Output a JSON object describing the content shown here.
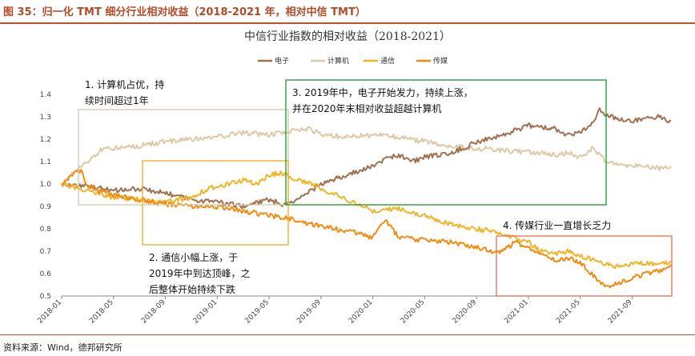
{
  "header": {
    "figure_title": "图 35：归一化 TMT 细分行业相对收益（2018-2021 年，相对中信 TMT）"
  },
  "footer": {
    "source": "资料来源：Wind，德邦研究所"
  },
  "chart_data": {
    "type": "line",
    "title": "中信行业指数的相对收益（2018-2021）",
    "ylim": [
      0.5,
      1.4
    ],
    "y_ticks": [
      "0.5",
      "0.6",
      "0.7",
      "0.8",
      "0.9",
      "1.0",
      "1.1",
      "1.2",
      "1.3",
      "1.4"
    ],
    "x_ticks": [
      "2018-01",
      "2018-05",
      "2018-09",
      "2019-01",
      "2019-05",
      "2019-09",
      "2020-01",
      "2020-05",
      "2020-09",
      "2021-01",
      "2021-05",
      "2021-09"
    ],
    "x_range_months": [
      0,
      47
    ],
    "series": [
      {
        "name": "电子",
        "color": "#a07050",
        "months": [
          0,
          2,
          4,
          6,
          8,
          10,
          12,
          14,
          16,
          17,
          18,
          19,
          20,
          21,
          22,
          24,
          25,
          26,
          27,
          28,
          29,
          30,
          31,
          32,
          33,
          34,
          35,
          36,
          37,
          38,
          39,
          40,
          41,
          41.5,
          42,
          43,
          44,
          45,
          46,
          47
        ],
        "values": [
          1.0,
          0.99,
          0.97,
          0.98,
          0.96,
          0.93,
          0.92,
          0.9,
          0.93,
          0.91,
          0.92,
          0.96,
          1.0,
          1.02,
          1.04,
          1.08,
          1.11,
          1.13,
          1.1,
          1.12,
          1.13,
          1.14,
          1.16,
          1.19,
          1.2,
          1.22,
          1.24,
          1.26,
          1.25,
          1.25,
          1.22,
          1.23,
          1.28,
          1.33,
          1.31,
          1.29,
          1.28,
          1.29,
          1.3,
          1.28
        ]
      },
      {
        "name": "计算机",
        "color": "#ddc9a6",
        "months": [
          0,
          1,
          2,
          3,
          4,
          6,
          8,
          10,
          12,
          14,
          16,
          18,
          19,
          20,
          22,
          24,
          26,
          28,
          30,
          32,
          34,
          36,
          38,
          39,
          40,
          41,
          42,
          43,
          44,
          45,
          46,
          47
        ],
        "values": [
          1.0,
          1.06,
          1.1,
          1.15,
          1.16,
          1.17,
          1.19,
          1.2,
          1.21,
          1.23,
          1.22,
          1.24,
          1.25,
          1.22,
          1.21,
          1.22,
          1.21,
          1.19,
          1.17,
          1.16,
          1.15,
          1.14,
          1.13,
          1.14,
          1.12,
          1.16,
          1.1,
          1.09,
          1.08,
          1.08,
          1.07,
          1.08
        ]
      },
      {
        "name": "通信",
        "color": "#f0b429",
        "months": [
          0,
          2,
          4,
          6,
          8,
          10,
          11,
          12,
          13,
          14,
          15,
          16,
          17,
          18,
          19,
          20,
          22,
          24,
          26,
          28,
          30,
          32,
          34,
          35,
          36,
          37,
          38,
          39,
          40,
          41,
          42,
          43,
          44,
          45,
          46,
          47
        ],
        "values": [
          1.0,
          0.97,
          0.94,
          0.93,
          0.92,
          0.94,
          0.97,
          0.99,
          1.0,
          1.02,
          1.0,
          1.04,
          1.05,
          1.02,
          1.01,
          0.98,
          0.93,
          0.88,
          0.89,
          0.86,
          0.82,
          0.8,
          0.78,
          0.76,
          0.74,
          0.7,
          0.69,
          0.7,
          0.68,
          0.66,
          0.64,
          0.63,
          0.64,
          0.65,
          0.64,
          0.65
        ]
      },
      {
        "name": "传媒",
        "color": "#f08c14",
        "months": [
          0,
          1,
          1.5,
          2,
          3,
          4,
          6,
          8,
          10,
          12,
          14,
          16,
          18,
          20,
          21,
          22,
          23,
          24,
          25,
          26,
          28,
          30,
          32,
          33,
          34,
          35,
          36,
          37,
          38,
          39,
          40,
          41,
          42,
          43,
          44,
          45,
          46,
          47
        ],
        "values": [
          1.0,
          1.05,
          1.06,
          0.99,
          0.97,
          0.95,
          0.93,
          0.91,
          0.9,
          0.9,
          0.88,
          0.86,
          0.84,
          0.81,
          0.8,
          0.79,
          0.78,
          0.76,
          0.84,
          0.76,
          0.75,
          0.74,
          0.72,
          0.7,
          0.7,
          0.74,
          0.71,
          0.68,
          0.66,
          0.67,
          0.65,
          0.59,
          0.54,
          0.56,
          0.58,
          0.6,
          0.61,
          0.64
        ]
      }
    ],
    "annotations": [
      {
        "color": "#d8ceb5",
        "lines": [
          "1. 计算机占优，持",
          "续时间超过1年"
        ]
      },
      {
        "color": "#f0b429",
        "lines": [
          "2. 通信小幅上涨，于",
          "2019年中到达顶峰，之",
          "后整体开始持续下跌"
        ]
      },
      {
        "color": "#2e9b3a",
        "lines": [
          "3. 2019年中，电子开始发力，持续上涨，",
          "并在2020年末相对收益超越计算机"
        ]
      },
      {
        "color": "#e8785a",
        "lines": [
          "4. 传媒行业一直增长乏力"
        ]
      }
    ]
  }
}
